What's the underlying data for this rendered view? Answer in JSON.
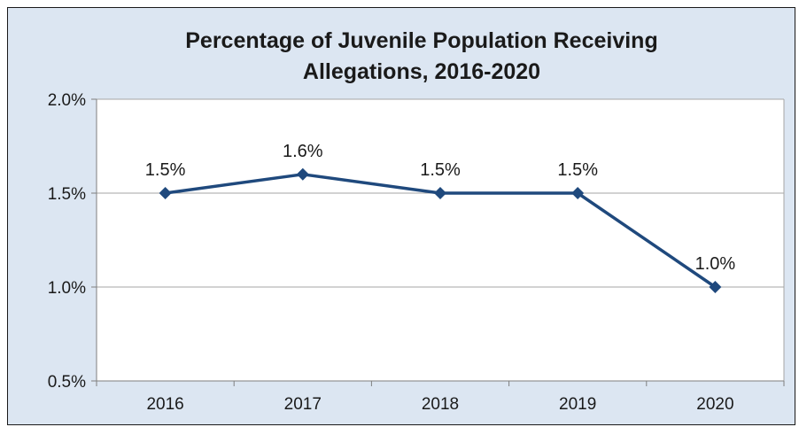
{
  "chart_data": {
    "type": "line",
    "title_lines": [
      "Percentage of Juvenile Population Receiving",
      "Allegations, 2016-2020"
    ],
    "categories": [
      "2016",
      "2017",
      "2018",
      "2019",
      "2020"
    ],
    "series": [
      {
        "values": [
          1.5,
          1.6,
          1.5,
          1.5,
          1.0
        ],
        "labels": [
          "1.5%",
          "1.6%",
          "1.5%",
          "1.5%",
          "1.0%"
        ]
      }
    ],
    "y_ticks": [
      0.5,
      1.0,
      1.5,
      2.0
    ],
    "y_tick_labels": [
      "0.5%",
      "1.0%",
      "1.5%",
      "2.0%"
    ],
    "ylim": [
      0.5,
      2.0
    ],
    "grid": true,
    "legend": "none"
  },
  "colors": {
    "frame_background": "#dce6f2",
    "plot_background": "#ffffff",
    "line": "#1f497d",
    "gridline": "#a6a6a6",
    "axis": "#7f7f7f"
  }
}
